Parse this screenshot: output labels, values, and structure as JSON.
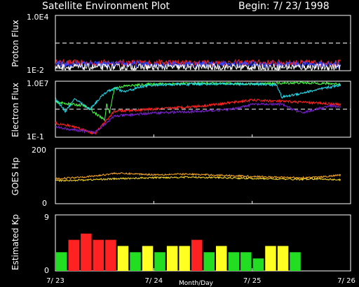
{
  "header": {
    "title": "Satellite Environment Plot",
    "begin": "Begin: 7/ 23/ 1998"
  },
  "colors": {
    "background": "#000000",
    "frame": "#ffffff",
    "kp_green": "#22dd22",
    "kp_red": "#ff2222",
    "kp_yellow": "#ffff22"
  },
  "x_axis": {
    "label": "Month/Day",
    "ticks": [
      "7/ 23",
      "7/ 24",
      "7/ 25",
      "7/ 26"
    ],
    "start_day": 23,
    "end_day": 26
  },
  "chart_data": [
    {
      "type": "line",
      "ylabel": "Proton Flux",
      "tick_labels": [
        "1.0E4",
        "1E-2"
      ],
      "scale": "log",
      "ylim": [
        0.01,
        10000
      ],
      "threshold": 10,
      "series": [
        {
          "color": "#ff2222",
          "level": 0.07
        },
        {
          "color": "#3344ff",
          "level": 0.05
        },
        {
          "color": "#ffffff",
          "level": 0.025
        }
      ]
    },
    {
      "type": "line",
      "ylabel": "Electron Flux",
      "tick_labels": [
        "1.0E7",
        "1E-1"
      ],
      "scale": "log",
      "ylim": [
        0.1,
        10000000
      ],
      "threshold": 1000,
      "series": [
        {
          "color": "#44ff44",
          "x": [
            23.0,
            23.3,
            23.5,
            23.52,
            23.55,
            23.6,
            23.7,
            24.0,
            24.5,
            25.0,
            25.5,
            25.9
          ],
          "y": [
            10000,
            3000,
            30,
            5000,
            300,
            1000000,
            2000000,
            4000000,
            5000000,
            4000000,
            6000000,
            4000000
          ]
        },
        {
          "color": "#22ddee",
          "x": [
            23.0,
            23.1,
            23.2,
            23.35,
            23.5,
            23.6,
            23.7,
            23.9,
            24.0,
            24.5,
            25.0,
            25.25,
            25.3,
            25.9
          ],
          "y": [
            30000,
            500,
            30000,
            1000,
            200000,
            1000000,
            300000,
            2000000,
            3000000,
            4000000,
            4000000,
            3000000,
            50000,
            3000000
          ]
        },
        {
          "color": "#ff2222",
          "x": [
            23.0,
            23.2,
            23.3,
            23.4,
            23.6,
            24.0,
            24.5,
            25.0,
            25.5,
            25.9
          ],
          "y": [
            10,
            3,
            1,
            0.3,
            500,
            1000,
            3000,
            20000,
            10000,
            5000
          ]
        },
        {
          "color": "#7722cc",
          "x": [
            23.0,
            23.2,
            23.4,
            23.6,
            24.0,
            24.5,
            24.8,
            25.0,
            25.3,
            25.5,
            25.8,
            25.9
          ],
          "y": [
            3,
            1,
            0.5,
            100,
            300,
            500,
            1000,
            5000,
            5000,
            300,
            3000,
            2000
          ]
        }
      ]
    },
    {
      "type": "line",
      "ylabel": "GOES Hp",
      "tick_labels": [
        "200",
        "0"
      ],
      "ylim": [
        0,
        200
      ],
      "series": [
        {
          "color": "#ffaa22",
          "x": [
            23.0,
            23.2,
            23.4,
            23.6,
            23.8,
            24.0,
            24.3,
            24.6,
            24.9,
            25.2,
            25.5,
            25.7,
            25.9
          ],
          "y": [
            90,
            95,
            100,
            110,
            108,
            105,
            107,
            104,
            100,
            96,
            94,
            96,
            104
          ]
        },
        {
          "color": "#ffdd22",
          "x": [
            23.0,
            23.3,
            23.6,
            24.0,
            24.3,
            24.6,
            24.9,
            25.2,
            25.5,
            25.7,
            25.9
          ],
          "y": [
            83,
            86,
            90,
            94,
            96,
            95,
            92,
            90,
            88,
            90,
            86
          ]
        }
      ]
    },
    {
      "type": "bar",
      "ylabel": "Estimated Kp",
      "tick_labels": [
        "9",
        "0"
      ],
      "ylim": [
        0,
        9
      ],
      "values": [
        3,
        5,
        6,
        5,
        5,
        4,
        3,
        4,
        3,
        4,
        4,
        5,
        3,
        4,
        3,
        3,
        2,
        4,
        4,
        3
      ],
      "bar_colors": [
        "green",
        "red",
        "red",
        "red",
        "red",
        "yellow",
        "green",
        "yellow",
        "green",
        "yellow",
        "yellow",
        "red",
        "green",
        "yellow",
        "green",
        "green",
        "green",
        "yellow",
        "yellow",
        "green"
      ]
    }
  ]
}
